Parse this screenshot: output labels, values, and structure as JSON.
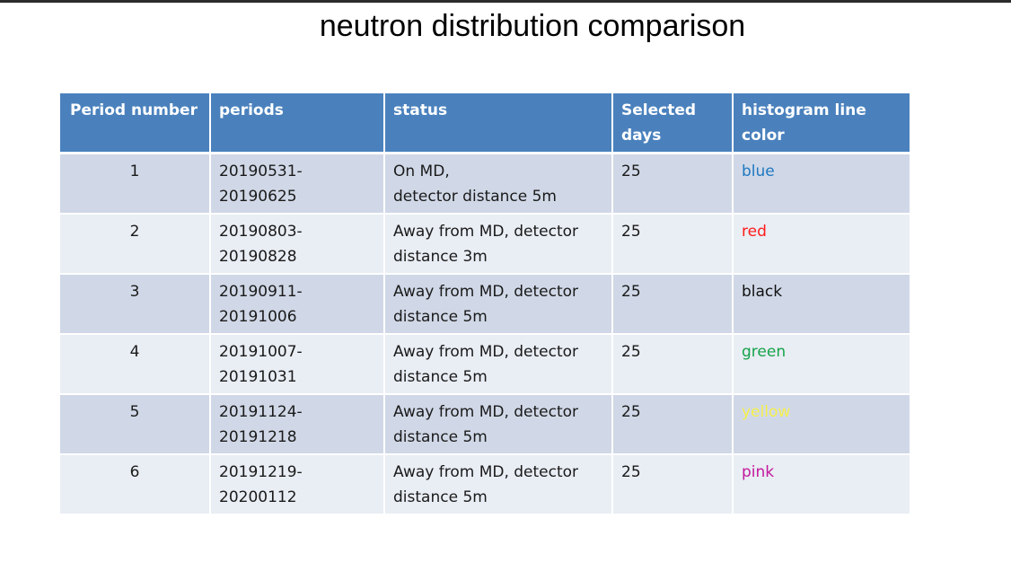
{
  "slide": {
    "title": "neutron distribution comparison"
  },
  "table": {
    "headers": {
      "period_number": "Period number",
      "periods": "periods",
      "status": "status",
      "selected_days_line1": "Selected",
      "selected_days_line2": "days",
      "color_line1": "histogram line",
      "color_line2": "color"
    },
    "rows": [
      {
        "number": "1",
        "period_start": "20190531-",
        "period_end": "20190625",
        "status_line1": "On MD,",
        "status_line2": "detector distance 5m",
        "days": "25",
        "color_name": "blue",
        "color_hex": "#1f78c1"
      },
      {
        "number": "2",
        "period_start": "20190803-",
        "period_end": "20190828",
        "status_line1": "Away from MD, detector",
        "status_line2": "distance 3m",
        "days": "25",
        "color_name": "red",
        "color_hex": "#ff1a1a"
      },
      {
        "number": "3",
        "period_start": "20190911-",
        "period_end": "20191006",
        "status_line1": "Away from MD, detector",
        "status_line2": "distance 5m",
        "days": "25",
        "color_name": "black",
        "color_hex": "#111111"
      },
      {
        "number": "4",
        "period_start": "20191007-",
        "period_end": "20191031",
        "status_line1": "Away from MD, detector",
        "status_line2": "distance 5m",
        "days": "25",
        "color_name": "green",
        "color_hex": "#16a34a"
      },
      {
        "number": "5",
        "period_start": "20191124-",
        "period_end": "20191218",
        "status_line1": "Away from MD, detector",
        "status_line2": "distance 5m",
        "days": "25",
        "color_name": "yellow",
        "color_hex": "#f7f04a"
      },
      {
        "number": "6",
        "period_start": "20191219-",
        "period_end": "20200112",
        "status_line1": "Away from MD, detector",
        "status_line2": "distance 5m",
        "days": "25",
        "color_name": "pink",
        "color_hex": "#c2189c"
      }
    ]
  }
}
